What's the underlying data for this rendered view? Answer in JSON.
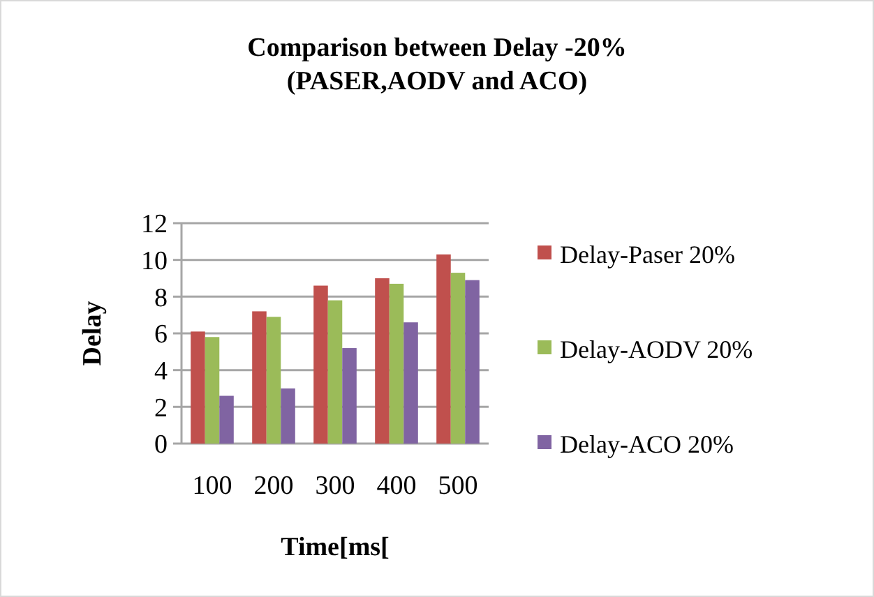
{
  "chart_data": {
    "type": "bar",
    "title": "Comparison between Delay -20%\n(PASER,AODV and ACO)",
    "xlabel": "Time[ms[",
    "ylabel": "Delay",
    "categories": [
      "100",
      "200",
      "300",
      "400",
      "500"
    ],
    "series": [
      {
        "name": "Delay-Paser 20%",
        "color": "#c0504d",
        "values": [
          6.1,
          7.2,
          8.6,
          9.0,
          10.3
        ]
      },
      {
        "name": "Delay-AODV 20%",
        "color": "#9bbb59",
        "values": [
          5.8,
          6.9,
          7.8,
          8.7,
          9.3
        ]
      },
      {
        "name": "Delay-ACO 20%",
        "color": "#8064a2",
        "values": [
          2.6,
          3.0,
          5.2,
          6.6,
          8.9
        ]
      }
    ],
    "ylim": [
      0,
      12
    ],
    "yticks": [
      0,
      2,
      4,
      6,
      8,
      10,
      12
    ],
    "grid": "y",
    "legend": "right"
  }
}
